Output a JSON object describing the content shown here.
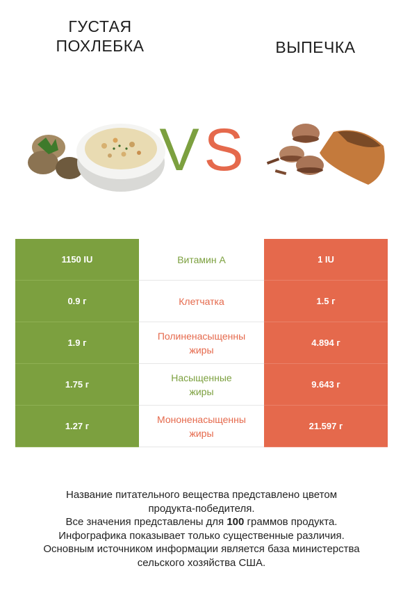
{
  "left_title": [
    "ГУСТАЯ",
    "ПОХЛЕБКА"
  ],
  "right_title": "ВЫПЕЧКА",
  "vs": {
    "v": "V",
    "s": "S"
  },
  "colors": {
    "left": "#7ca03f",
    "right": "#e5694c"
  },
  "rows": [
    {
      "left": "1150 IU",
      "nutrient": [
        "Витамин А"
      ],
      "right": "1 IU",
      "winner": "left"
    },
    {
      "left": "0.9 г",
      "nutrient": [
        "Клетчатка"
      ],
      "right": "1.5 г",
      "winner": "right"
    },
    {
      "left": "1.9 г",
      "nutrient": [
        "Полиненасыщенны",
        "жиры"
      ],
      "right": "4.894 г",
      "winner": "right"
    },
    {
      "left": "1.75 г",
      "nutrient": [
        "Насыщенные",
        "жиры"
      ],
      "right": "9.643 г",
      "winner": "left"
    },
    {
      "left": "1.27 г",
      "nutrient": [
        "Мононенасыщенны",
        "жиры"
      ],
      "right": "21.597 г",
      "winner": "right"
    }
  ],
  "footer": {
    "line1": "Название питательного вещества представлено цветом",
    "line2": "продукта-победителя.",
    "line3_pre": "Все значения представлены для ",
    "line3_bold": "100",
    "line3_post": " граммов продукта.",
    "line4": "Инфографика показывает только существенные различия.",
    "line5": "Основным источником информации является база министерства",
    "line6": "сельского хозяйства США."
  }
}
